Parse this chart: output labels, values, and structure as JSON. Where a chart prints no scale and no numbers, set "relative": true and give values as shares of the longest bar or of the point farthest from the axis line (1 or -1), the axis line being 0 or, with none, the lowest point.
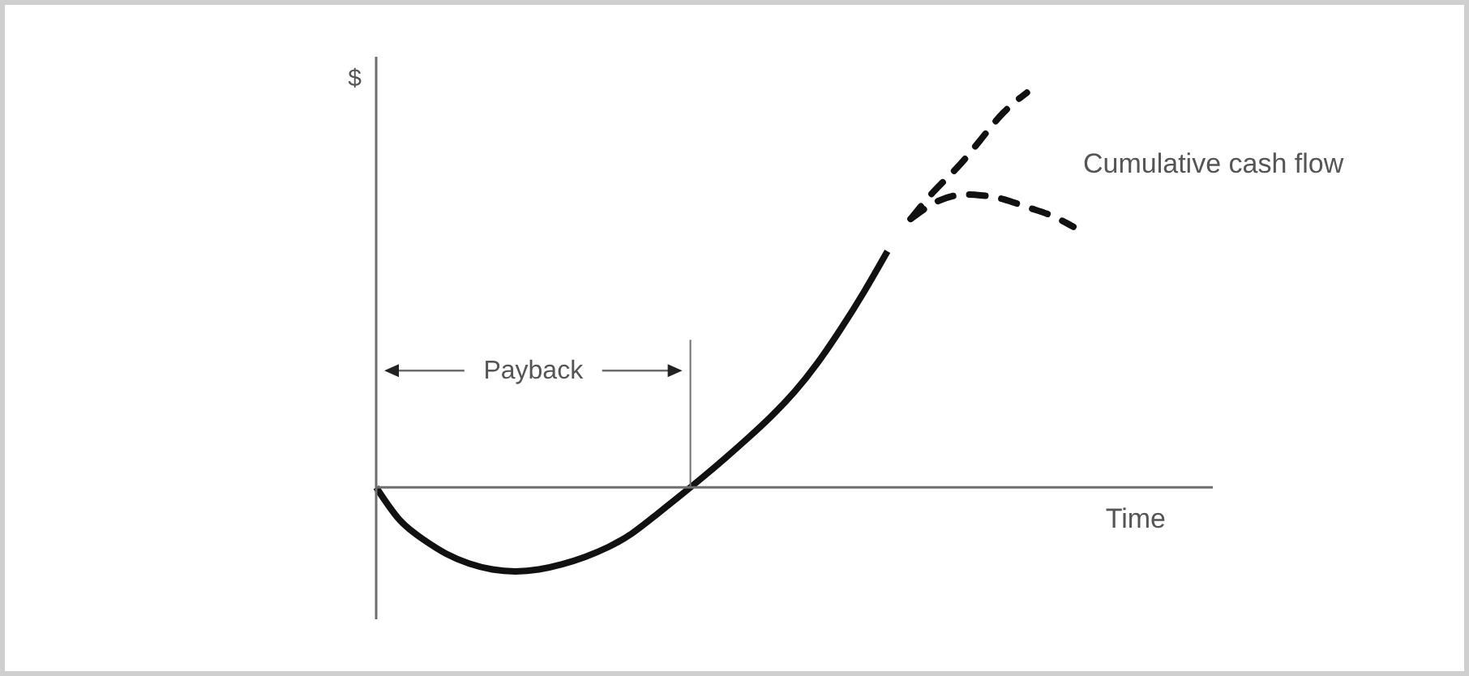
{
  "chart_data": {
    "type": "line",
    "relative": true,
    "xlabel": "Time",
    "ylabel": "$",
    "annotations": [
      "Payback",
      "Cumulative cash flow"
    ],
    "categories": [
      null,
      null,
      null,
      null,
      null,
      null,
      null,
      null,
      null,
      null,
      null,
      null,
      null,
      null,
      null,
      null,
      null,
      null,
      null,
      null,
      null,
      null,
      null,
      null,
      null,
      null,
      null,
      null,
      null,
      null,
      null,
      null,
      null,
      null,
      null,
      null,
      null
    ],
    "series": [
      {
        "color": "#111111",
        "line_style": "solid",
        "values": [
          0,
          -0.082,
          -0.131,
          -0.168,
          -0.193,
          -0.208,
          -0.213,
          -0.208,
          -0.195,
          -0.176,
          -0.151,
          -0.117,
          -0.072,
          -0.025,
          0.023,
          0.073,
          0.125,
          0.18,
          0.242,
          0.316,
          0.402,
          0.496,
          0.598,
          null,
          null,
          null,
          null,
          null,
          null,
          null,
          null,
          null,
          null,
          null,
          null,
          null,
          null
        ]
      },
      {
        "color": "#111111",
        "line_style": "dashed",
        "values": [
          null,
          null,
          null,
          null,
          null,
          null,
          null,
          null,
          null,
          null,
          null,
          null,
          null,
          null,
          null,
          null,
          null,
          null,
          null,
          null,
          null,
          null,
          null,
          0.68,
          0.75,
          0.81,
          0.88,
          0.95,
          1,
          null,
          null,
          null,
          null,
          null,
          null,
          null,
          null
        ]
      },
      {
        "color": "#111111",
        "line_style": "dashed",
        "values": [
          null,
          null,
          null,
          null,
          null,
          null,
          null,
          null,
          null,
          null,
          null,
          null,
          null,
          null,
          null,
          null,
          null,
          null,
          null,
          null,
          null,
          null,
          null,
          0.68,
          0.72,
          0.74,
          0.74,
          0.73,
          0.71,
          0.69,
          0.66,
          null,
          null,
          null,
          null,
          null,
          null
        ]
      }
    ]
  }
}
